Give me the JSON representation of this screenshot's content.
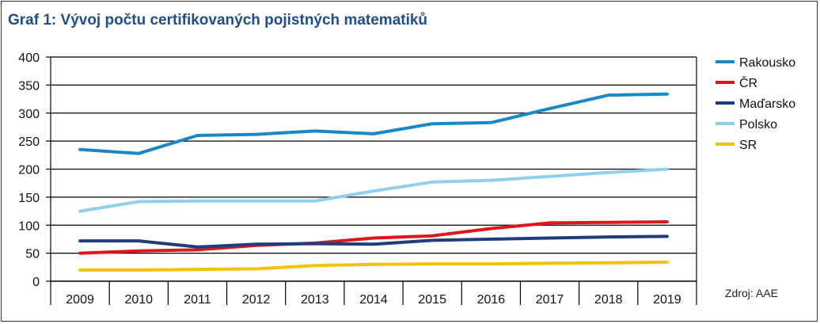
{
  "title": "Graf 1: Vývoj počtu certifikovaných pojistných matematiků",
  "source": "Zdroj: AAE",
  "chart_data": {
    "type": "line",
    "title": "Graf 1: Vývoj počtu certifikovaných pojistných matematiků",
    "xlabel": "",
    "ylabel": "",
    "x": [
      "2009",
      "2010",
      "2011",
      "2012",
      "2013",
      "2014",
      "2015",
      "2016",
      "2017",
      "2018",
      "2019"
    ],
    "ylim": [
      0,
      400
    ],
    "yticks": [
      "0",
      "50",
      "100",
      "150",
      "200",
      "250",
      "300",
      "350",
      "400"
    ],
    "grid": true,
    "legend_position": "right",
    "series": [
      {
        "name": "Rakousko",
        "color": "#1a87c6",
        "values": [
          235,
          228,
          260,
          262,
          268,
          263,
          281,
          283,
          308,
          332,
          334
        ]
      },
      {
        "name": "ČR",
        "color": "#e0161b",
        "values": [
          50,
          54,
          56,
          64,
          68,
          77,
          81,
          94,
          104,
          105,
          106
        ]
      },
      {
        "name": "Maďarsko",
        "color": "#1f3f7a",
        "values": [
          72,
          72,
          61,
          66,
          67,
          66,
          73,
          75,
          77,
          79,
          80
        ]
      },
      {
        "name": "Polsko",
        "color": "#8fd0ef",
        "values": [
          125,
          142,
          143,
          143,
          143,
          161,
          177,
          180,
          187,
          194,
          200
        ]
      },
      {
        "name": "SR",
        "color": "#f4c20d",
        "values": [
          20,
          20,
          21,
          22,
          28,
          30,
          31,
          31,
          32,
          33,
          34
        ]
      }
    ]
  }
}
